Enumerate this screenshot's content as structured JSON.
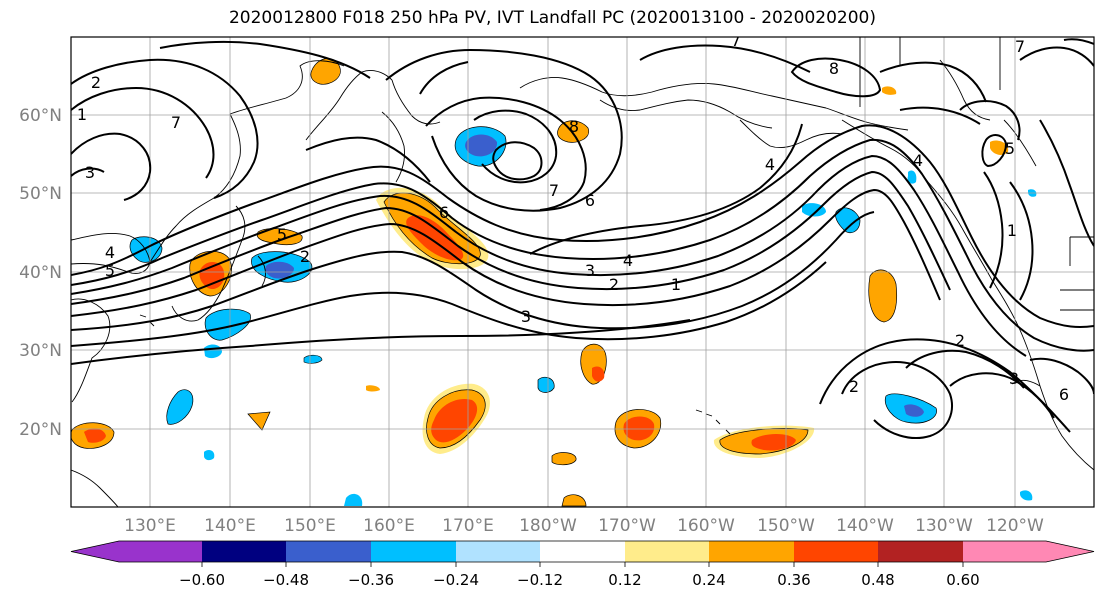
{
  "title": "2020012800 F018 250 hPa PV, IVT Landfall PC (2020013100 - 2020020200)",
  "map": {
    "lon_labels": [
      "130°E",
      "140°E",
      "150°E",
      "160°E",
      "170°E",
      "180°W",
      "170°W",
      "160°W",
      "150°W",
      "140°W",
      "130°W",
      "120°W"
    ],
    "lat_labels": [
      "20°N",
      "30°N",
      "40°N",
      "50°N",
      "60°N"
    ],
    "grid": true,
    "coastlines": true,
    "contour_labels": [
      "2",
      "1",
      "7",
      "3",
      "4",
      "5",
      "2",
      "5",
      "6",
      "7",
      "6",
      "4",
      "3",
      "2",
      "1",
      "3",
      "4",
      "8",
      "8",
      "7",
      "5",
      "7",
      "1",
      "2",
      "3",
      "2",
      "6",
      "4"
    ]
  },
  "colorbar": {
    "tick_labels": [
      "−0.60",
      "−0.48",
      "−0.36",
      "−0.24",
      "−0.12",
      "0.12",
      "0.24",
      "0.36",
      "0.48",
      "0.60"
    ],
    "colors": [
      "#9933cc",
      "#000080",
      "#3a5fcd",
      "#00bfff",
      "#b0e2ff",
      "#ffffff",
      "#ffec8b",
      "#ffa500",
      "#ff4500",
      "#b22222",
      "#ff88b4"
    ],
    "extend": "both"
  },
  "shading_colors": {
    "neg_light": "#b0e2ff",
    "neg_mid": "#00bfff",
    "neg_strong": "#3a5fcd",
    "pos_light": "#ffec8b",
    "pos_mid": "#ffa500",
    "pos_strong": "#ff4500"
  }
}
